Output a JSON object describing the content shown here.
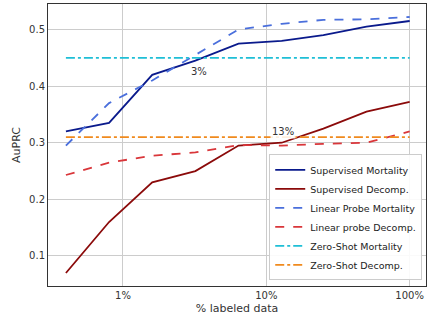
{
  "chart_data": {
    "type": "line",
    "x_label": "% labeled data",
    "y_label": "AuPRC",
    "log": "x",
    "grid": true,
    "legend": "lower right",
    "x": [
      0.4,
      0.8,
      1.6,
      3.2,
      6.4,
      12.8,
      25,
      50,
      100
    ],
    "xlim": [
      0.3,
      130
    ],
    "xticks": [
      {
        "value": 1,
        "label": "1%"
      },
      {
        "value": 10,
        "label": "10%"
      },
      {
        "value": 100,
        "label": "100%"
      }
    ],
    "ylim": [
      0.047,
      0.545
    ],
    "yticks": [
      0.1,
      0.2,
      0.3,
      0.4,
      0.5
    ],
    "series": [
      {
        "name": "Supervised Mortality",
        "color": "#0a1a8c",
        "line_style": "solid",
        "values": [
          0.32,
          0.335,
          0.42,
          0.445,
          0.475,
          0.48,
          0.49,
          0.505,
          0.515
        ]
      },
      {
        "name": "Supervised Decomp.",
        "color": "#8b0a0a",
        "line_style": "solid",
        "values": [
          0.07,
          0.16,
          0.23,
          0.25,
          0.295,
          0.3,
          0.325,
          0.355,
          0.372
        ]
      },
      {
        "name": "Linear Probe Mortality",
        "color": "#4a6fdc",
        "line_style": "dash",
        "values": [
          0.295,
          0.37,
          0.41,
          0.455,
          0.5,
          0.51,
          0.517,
          0.518,
          0.522
        ]
      },
      {
        "name": "Linear probe Decomp.",
        "color": "#d9363a",
        "line_style": "dash",
        "values": [
          0.243,
          0.265,
          0.277,
          0.283,
          0.296,
          0.295,
          0.298,
          0.3,
          0.32
        ]
      },
      {
        "name": "Zero-Shot Mortality",
        "color": "#1fbfd6",
        "line_style": "dashdot",
        "values": [
          0.45,
          0.45,
          0.45,
          0.45,
          0.45,
          0.45,
          0.45,
          0.45,
          0.45
        ]
      },
      {
        "name": "Zero-Shot Decomp.",
        "color": "#f08a1e",
        "line_style": "dashdot",
        "values": [
          0.31,
          0.31,
          0.31,
          0.31,
          0.31,
          0.31,
          0.31,
          0.31,
          0.31
        ]
      }
    ],
    "annotations": [
      {
        "text": "3%",
        "x": 3.4,
        "y": 0.425
      },
      {
        "text": "13%",
        "x": 13,
        "y": 0.32
      }
    ]
  }
}
